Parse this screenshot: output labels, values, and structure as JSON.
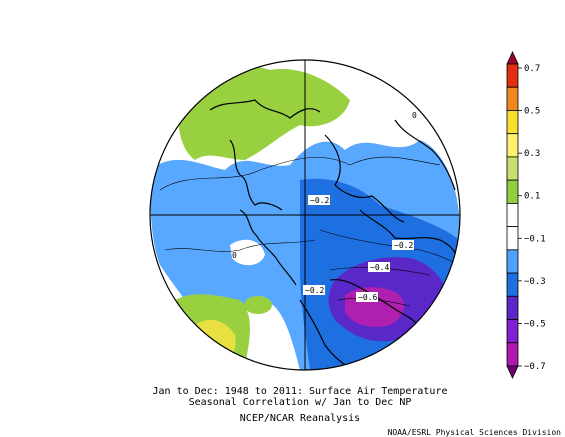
{
  "caption": {
    "line1": "Jan to Dec: 1948 to 2011: Surface Air Temperature",
    "line2": "Seasonal Correlation w/ Jan to Dec NP",
    "line3": "NCEP/NCAR Reanalysis"
  },
  "credit": "NOAA/ESRL Physical Sciences Division",
  "colorbar": {
    "labels": [
      "0.7",
      "0.5",
      "0.3",
      "0.1",
      "−0.1",
      "−0.3",
      "−0.5",
      "−0.7"
    ],
    "colors": [
      "#a0002a",
      "#e03010",
      "#f08820",
      "#f8e030",
      "#fff070",
      "#c8e070",
      "#90d040",
      "#ffffff",
      "#ffffff",
      "#50a0ff",
      "#1e6fe0",
      "#5a28c8",
      "#8020d0",
      "#b018b0",
      "#700070"
    ]
  },
  "contour_labels": [
    "−0.2",
    "−0.2",
    "−0.4",
    "−0.6",
    "−0.2",
    "0",
    "0"
  ],
  "region_colors": {
    "positive": "#98d040",
    "positive_strong": "#e8e040",
    "neg_light": "#58a8ff",
    "neg_mid": "#1e6fe0",
    "neg_strong": "#5a28c8",
    "neg_strongest": "#b020b0"
  }
}
